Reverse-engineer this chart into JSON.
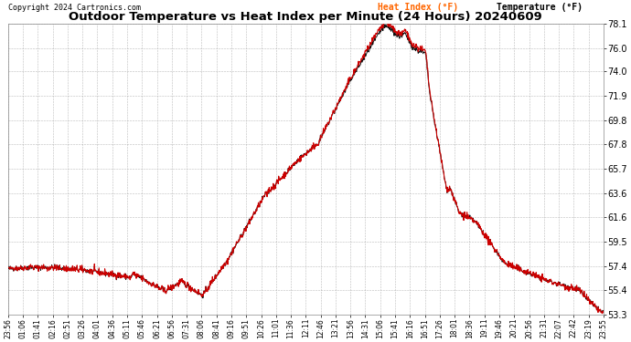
{
  "title": "Outdoor Temperature vs Heat Index per Minute (24 Hours) 20240609",
  "copyright": "Copyright 2024 Cartronics.com",
  "legend_heat": "Heat Index (°F)",
  "legend_temp": "Temperature (°F)",
  "y_min": 53.3,
  "y_max": 78.1,
  "y_ticks": [
    53.3,
    55.4,
    57.4,
    59.5,
    61.6,
    63.6,
    65.7,
    67.8,
    69.8,
    71.9,
    74.0,
    76.0,
    78.1
  ],
  "x_tick_labels": [
    "23:56",
    "01:06",
    "01:41",
    "02:16",
    "02:51",
    "03:26",
    "04:01",
    "04:36",
    "05:11",
    "05:46",
    "06:21",
    "06:56",
    "07:31",
    "08:06",
    "08:41",
    "09:16",
    "09:51",
    "10:26",
    "11:01",
    "11:36",
    "12:11",
    "12:46",
    "13:21",
    "13:56",
    "14:31",
    "15:06",
    "15:41",
    "16:16",
    "16:51",
    "17:26",
    "18:01",
    "18:36",
    "19:11",
    "19:46",
    "20:21",
    "20:56",
    "21:31",
    "22:07",
    "22:42",
    "23:19",
    "23:55"
  ],
  "bg_color": "#ffffff",
  "plot_bg_color": "#ffffff",
  "grid_color": "#aaaaaa",
  "title_color": "#000000",
  "tick_color": "#000000",
  "heat_color": "#cc0000",
  "temp_color": "#000000",
  "legend_heat_color": "#ff6600",
  "legend_temp_color": "#000000",
  "copyright_color": "#000000"
}
